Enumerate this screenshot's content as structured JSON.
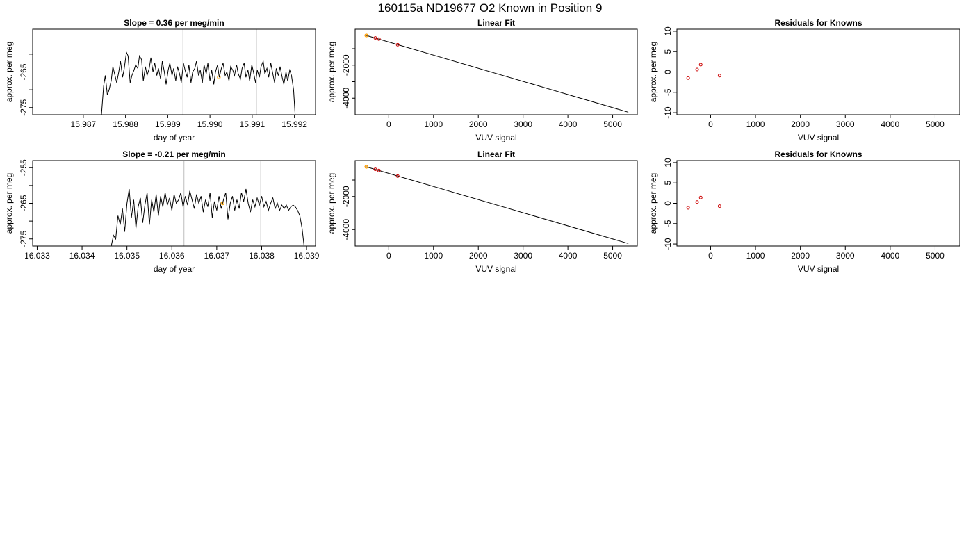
{
  "figure_title": "160115a     ND19677   O2 Known in Position  9",
  "chart_data": [
    {
      "type": "line",
      "title": "Slope =  0.36  per meg/min",
      "xlabel": "day of year",
      "ylabel": "approx. per meg",
      "xlim": [
        15.9858,
        15.9925
      ],
      "ylim": [
        -277,
        -253
      ],
      "xticks": [
        15.987,
        15.988,
        15.989,
        15.99,
        15.991,
        15.992
      ],
      "xtick_labels": [
        "15.987",
        "15.988",
        "15.989",
        "15.990",
        "15.991",
        "15.992"
      ],
      "yticks": [
        -275,
        -270,
        -265,
        -260
      ],
      "ytick_labels": [
        "-275",
        "",
        "-265",
        ""
      ],
      "vlines": [
        15.98936,
        15.9911
      ],
      "highlight": {
        "x": 15.99021,
        "y": -266.5
      },
      "series": [
        {
          "x": [
            15.98743,
            15.98748,
            15.98752,
            15.98757,
            15.98761,
            15.98766,
            15.9877,
            15.98775,
            15.98779,
            15.98784,
            15.98788,
            15.98793,
            15.98797,
            15.98802,
            15.98806,
            15.98811,
            15.98815,
            15.9882,
            15.98824,
            15.98829,
            15.98833,
            15.98838,
            15.98842,
            15.98847,
            15.98851,
            15.98856,
            15.9886,
            15.98865,
            15.98869,
            15.98874,
            15.98878,
            15.98883,
            15.98887,
            15.98892,
            15.98896,
            15.98901,
            15.98905,
            15.9891,
            15.98914,
            15.98919,
            15.98923,
            15.98928,
            15.98932,
            15.98937,
            15.98941,
            15.98946,
            15.9895,
            15.98955,
            15.98959,
            15.98964,
            15.98968,
            15.98973,
            15.98977,
            15.98982,
            15.98986,
            15.98991,
            15.98995,
            15.99,
            15.99004,
            15.99009,
            15.99013,
            15.99018,
            15.99022,
            15.99027,
            15.99031,
            15.99036,
            15.9904,
            15.99045,
            15.99049,
            15.99054,
            15.99058,
            15.99063,
            15.99067,
            15.99072,
            15.99076,
            15.99081,
            15.99085,
            15.9909,
            15.99094,
            15.99099,
            15.99103,
            15.99108,
            15.99112,
            15.99117,
            15.99121,
            15.99126,
            15.9913,
            15.99135,
            15.99139,
            15.99144,
            15.99148,
            15.99153,
            15.99157,
            15.99162,
            15.99166,
            15.99171,
            15.99175,
            15.9918,
            15.99184,
            15.99189,
            15.99193,
            15.99198,
            15.99202
          ],
          "values": [
            -277.0,
            -269.0,
            -266.0,
            -271.5,
            -270.0,
            -267.5,
            -263.5,
            -266.0,
            -268.0,
            -265.0,
            -262.0,
            -266.5,
            -264.0,
            -259.5,
            -260.5,
            -268.0,
            -266.0,
            -264.5,
            -263.0,
            -264.0,
            -260.5,
            -261.5,
            -267.5,
            -263.5,
            -266.0,
            -264.0,
            -261.0,
            -265.0,
            -262.5,
            -266.0,
            -264.0,
            -267.0,
            -262.0,
            -265.0,
            -268.5,
            -264.5,
            -262.5,
            -266.0,
            -264.0,
            -267.5,
            -263.5,
            -265.5,
            -268.0,
            -262.5,
            -264.5,
            -266.5,
            -263.0,
            -268.0,
            -265.0,
            -264.0,
            -262.0,
            -266.0,
            -264.5,
            -268.0,
            -263.0,
            -265.5,
            -262.5,
            -267.5,
            -264.5,
            -268.5,
            -265.0,
            -263.0,
            -266.5,
            -264.0,
            -262.5,
            -266.0,
            -265.0,
            -267.5,
            -263.5,
            -264.5,
            -266.0,
            -263.0,
            -265.5,
            -267.0,
            -264.0,
            -262.5,
            -266.5,
            -264.5,
            -267.5,
            -263.0,
            -265.0,
            -268.0,
            -264.5,
            -266.5,
            -263.5,
            -262.0,
            -265.5,
            -264.0,
            -266.5,
            -262.5,
            -265.0,
            -268.0,
            -264.0,
            -266.0,
            -263.5,
            -266.5,
            -268.5,
            -265.0,
            -267.5,
            -264.5,
            -266.0,
            -270.0,
            -277.5
          ]
        }
      ]
    },
    {
      "type": "scatter",
      "title": "Linear Fit",
      "xlabel": "VUV signal",
      "ylabel": "approx. per meg",
      "xlim": [
        -750,
        5550
      ],
      "ylim": [
        -5000,
        180
      ],
      "xticks": [
        0,
        1000,
        2000,
        3000,
        4000,
        5000
      ],
      "xtick_labels": [
        "0",
        "1000",
        "2000",
        "3000",
        "4000",
        "5000"
      ],
      "yticks": [
        -4000,
        -3000,
        -2000,
        -1000
      ],
      "ytick_labels": [
        "-4000",
        "",
        "-2000",
        ""
      ],
      "fit_line": {
        "x": [
          -500,
          5350
        ],
        "y": [
          -200,
          -4850
        ]
      },
      "points": {
        "x": [
          -500,
          -300,
          -220,
          200
        ],
        "y": [
          -200,
          -350,
          -420,
          -760
        ]
      },
      "highlight": {
        "x": -500,
        "y": -200
      }
    },
    {
      "type": "scatter",
      "title": "Residuals for Knowns",
      "xlabel": "VUV signal",
      "ylabel": "approx. per meg",
      "xlim": [
        -750,
        5550
      ],
      "ylim": [
        -10.5,
        10.5
      ],
      "xticks": [
        0,
        1000,
        2000,
        3000,
        4000,
        5000
      ],
      "xtick_labels": [
        "0",
        "1000",
        "2000",
        "3000",
        "4000",
        "5000"
      ],
      "yticks": [
        -10,
        -5,
        0,
        5,
        10
      ],
      "ytick_labels": [
        "-10",
        "-5",
        "0",
        "5",
        "10"
      ],
      "points": {
        "x": [
          -500,
          -300,
          -220,
          200
        ],
        "y": [
          -1.5,
          0.6,
          1.8,
          -0.9
        ]
      }
    },
    {
      "type": "line",
      "title": "Slope =  -0.21  per meg/min",
      "xlabel": "day of year",
      "ylabel": "approx. per meg",
      "xlim": [
        16.0329,
        16.0392
      ],
      "ylim": [
        -277,
        -253
      ],
      "xticks": [
        16.033,
        16.034,
        16.035,
        16.036,
        16.037,
        16.038,
        16.039
      ],
      "xtick_labels": [
        "16.033",
        "16.034",
        "16.035",
        "16.036",
        "16.037",
        "16.038",
        "16.039"
      ],
      "yticks": [
        -275,
        -270,
        -265,
        -260,
        -255
      ],
      "ytick_labels": [
        "-275",
        "",
        "-265",
        "",
        "-255"
      ],
      "vlines": [
        16.03627,
        16.03798
      ],
      "highlight": {
        "x": 16.03713,
        "y": -265.0
      },
      "series": [
        {
          "x": [
            16.03465,
            16.0347,
            16.03475,
            16.0348,
            16.03485,
            16.0349,
            16.03495,
            16.035,
            16.03505,
            16.0351,
            16.03515,
            16.0352,
            16.03525,
            16.0353,
            16.03535,
            16.0354,
            16.03545,
            16.0355,
            16.03555,
            16.0356,
            16.03565,
            16.0357,
            16.03575,
            16.0358,
            16.03585,
            16.0359,
            16.03595,
            16.036,
            16.03605,
            16.0361,
            16.03615,
            16.0362,
            16.03625,
            16.0363,
            16.03635,
            16.0364,
            16.03645,
            16.0365,
            16.03655,
            16.0366,
            16.03665,
            16.0367,
            16.03675,
            16.0368,
            16.03685,
            16.0369,
            16.03695,
            16.037,
            16.03705,
            16.0371,
            16.03715,
            16.0372,
            16.03725,
            16.0373,
            16.03735,
            16.0374,
            16.03745,
            16.0375,
            16.03755,
            16.0376,
            16.03765,
            16.0377,
            16.03775,
            16.0378,
            16.03785,
            16.0379,
            16.03795,
            16.038,
            16.03805,
            16.0381,
            16.03815,
            16.0382,
            16.03825,
            16.0383,
            16.03835,
            16.0384,
            16.03845,
            16.0385,
            16.03855,
            16.0386,
            16.03865,
            16.0387,
            16.03875,
            16.0388,
            16.03885,
            16.0389,
            16.03895
          ],
          "values": [
            -277.0,
            -274.0,
            -275.0,
            -268.5,
            -271.0,
            -266.5,
            -273.0,
            -265.0,
            -261.0,
            -269.0,
            -264.0,
            -272.0,
            -266.0,
            -263.5,
            -270.5,
            -265.5,
            -262.0,
            -271.0,
            -264.0,
            -267.5,
            -262.5,
            -268.5,
            -263.0,
            -266.0,
            -262.0,
            -265.5,
            -263.5,
            -267.0,
            -262.5,
            -265.0,
            -264.0,
            -262.0,
            -266.0,
            -263.0,
            -265.5,
            -261.5,
            -264.0,
            -266.5,
            -262.5,
            -265.0,
            -263.0,
            -267.5,
            -264.0,
            -266.0,
            -262.0,
            -269.0,
            -264.5,
            -267.0,
            -263.0,
            -266.5,
            -264.0,
            -262.0,
            -269.5,
            -265.0,
            -263.0,
            -267.0,
            -264.0,
            -266.5,
            -262.0,
            -264.5,
            -261.0,
            -265.0,
            -267.5,
            -264.0,
            -266.0,
            -263.5,
            -265.5,
            -263.0,
            -266.0,
            -264.5,
            -267.0,
            -265.0,
            -263.5,
            -266.5,
            -265.0,
            -267.0,
            -265.5,
            -266.5,
            -265.5,
            -267.0,
            -266.0,
            -265.5,
            -266.0,
            -267.0,
            -268.5,
            -272.0,
            -277.5
          ]
        }
      ]
    },
    {
      "type": "scatter",
      "title": "Linear Fit",
      "xlabel": "VUV signal",
      "ylabel": "approx. per meg",
      "xlim": [
        -750,
        5550
      ],
      "ylim": [
        -5000,
        180
      ],
      "xticks": [
        0,
        1000,
        2000,
        3000,
        4000,
        5000
      ],
      "xtick_labels": [
        "0",
        "1000",
        "2000",
        "3000",
        "4000",
        "5000"
      ],
      "yticks": [
        -4000,
        -3000,
        -2000,
        -1000
      ],
      "ytick_labels": [
        "-4000",
        "",
        "-2000",
        ""
      ],
      "fit_line": {
        "x": [
          -500,
          5350
        ],
        "y": [
          -200,
          -4850
        ]
      },
      "points": {
        "x": [
          -500,
          -300,
          -220,
          200
        ],
        "y": [
          -200,
          -350,
          -420,
          -760
        ]
      },
      "highlight": {
        "x": -500,
        "y": -200
      }
    },
    {
      "type": "scatter",
      "title": "Residuals for Knowns",
      "xlabel": "VUV signal",
      "ylabel": "approx. per meg",
      "xlim": [
        -750,
        5550
      ],
      "ylim": [
        -10.5,
        10.5
      ],
      "xticks": [
        0,
        1000,
        2000,
        3000,
        4000,
        5000
      ],
      "xtick_labels": [
        "0",
        "1000",
        "2000",
        "3000",
        "4000",
        "5000"
      ],
      "yticks": [
        -10,
        -5,
        0,
        5,
        10
      ],
      "ytick_labels": [
        "-10",
        "-5",
        "0",
        "5",
        "10"
      ],
      "points": {
        "x": [
          -500,
          -300,
          -220,
          200
        ],
        "y": [
          -1.1,
          0.3,
          1.4,
          -0.7
        ]
      }
    }
  ],
  "colors": {
    "axis": "#000000",
    "line": "#000000",
    "vline": "#c8c8c8",
    "point": "#cc0000",
    "highlight": "#ffa500"
  }
}
